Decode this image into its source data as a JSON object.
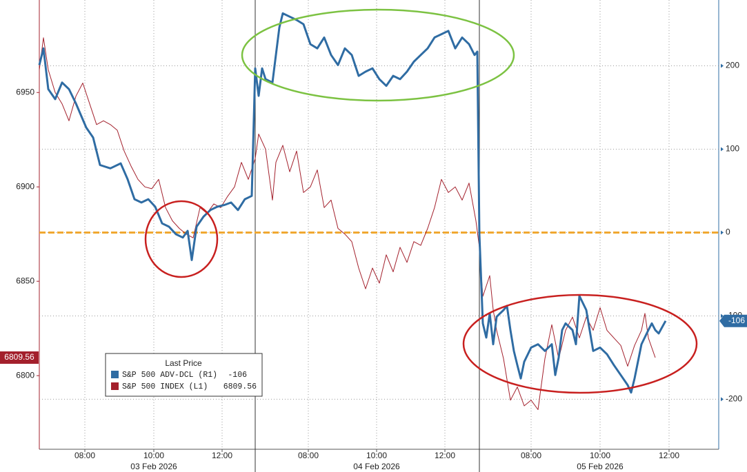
{
  "chart_data": {
    "type": "line",
    "xlim": [
      0,
      19.7
    ],
    "xticks": [
      {
        "value": 1.32,
        "label": "08:00"
      },
      {
        "value": 3.32,
        "label": "10:00"
      },
      {
        "value": 5.3,
        "label": "12:00"
      },
      {
        "value": 7.8,
        "label": "08:00"
      },
      {
        "value": 9.78,
        "label": "10:00"
      },
      {
        "value": 11.76,
        "label": "12:00"
      },
      {
        "value": 14.26,
        "label": "08:00"
      },
      {
        "value": 16.26,
        "label": "10:00"
      },
      {
        "value": 18.26,
        "label": "12:00"
      }
    ],
    "x_date_labels": [
      {
        "value": 3.32,
        "label": "03 Feb 2026"
      },
      {
        "value": 9.78,
        "label": "04 Feb 2026"
      },
      {
        "value": 16.26,
        "label": "05 Feb 2026"
      }
    ],
    "ylim": [
      6761,
      6999
    ],
    "yticks": [
      6800,
      6850,
      6900,
      6950
    ],
    "y2lim": [
      -260,
      279
    ],
    "y2ticks": [
      -200,
      -100,
      0,
      100,
      200
    ],
    "grid": true,
    "reference_line": {
      "value": 0,
      "axis": "y2",
      "color": "#f0a830"
    },
    "legend_title": "Last Price",
    "series": [
      {
        "name": "S&P 500 ADV-DCL (R1)",
        "color": "#2f6ca3",
        "axis": "y2",
        "x": [
          0,
          0.12,
          0.26,
          0.46,
          0.66,
          0.86,
          1.06,
          1.36,
          1.56,
          1.76,
          2.06,
          2.36,
          2.56,
          2.76,
          2.96,
          3.16,
          3.36,
          3.56,
          3.76,
          3.96,
          4.16,
          4.3,
          4.42,
          4.56,
          4.76,
          4.96,
          5.16,
          5.36,
          5.56,
          5.76,
          5.96,
          6.16,
          6.26,
          6.36,
          6.46,
          6.56,
          6.76,
          6.86,
          6.96,
          7.06,
          7.26,
          7.46,
          7.66,
          7.86,
          8.06,
          8.26,
          8.46,
          8.66,
          8.86,
          9.06,
          9.26,
          9.46,
          9.66,
          9.86,
          10.06,
          10.26,
          10.46,
          10.66,
          10.86,
          11.06,
          11.26,
          11.46,
          11.66,
          11.86,
          12.06,
          12.26,
          12.46,
          12.62,
          12.7,
          12.76,
          12.86,
          12.96,
          13.06,
          13.16,
          13.26,
          13.46,
          13.56,
          13.66,
          13.76,
          13.86,
          13.96,
          14.06,
          14.26,
          14.46,
          14.66,
          14.86,
          14.96,
          15.06,
          15.16,
          15.26,
          15.46,
          15.56,
          15.66,
          15.86,
          16.06,
          16.26,
          16.46,
          16.66,
          16.86,
          17.06,
          17.16,
          17.26,
          17.46,
          17.66,
          17.76,
          17.86,
          17.96,
          18.16
        ],
        "values": [
          201,
          221,
          172,
          160,
          180,
          172,
          155,
          126,
          114,
          81,
          77,
          83,
          64,
          40,
          36,
          40,
          31,
          11,
          7,
          -2,
          -6,
          2,
          -33,
          7,
          19,
          27,
          31,
          33,
          36,
          27,
          40,
          44,
          197,
          164,
          197,
          184,
          180,
          213,
          246,
          263,
          259,
          255,
          250,
          226,
          221,
          234,
          213,
          201,
          221,
          213,
          188,
          193,
          197,
          184,
          176,
          188,
          184,
          193,
          205,
          213,
          221,
          234,
          238,
          242,
          221,
          234,
          226,
          213,
          217,
          -2,
          -109,
          -126,
          -97,
          -134,
          -101,
          -93,
          -88,
          -117,
          -142,
          -159,
          -175,
          -155,
          -138,
          -134,
          -142,
          -134,
          -171,
          -150,
          -117,
          -109,
          -117,
          -134,
          -76,
          -93,
          -142,
          -138,
          -146,
          -159,
          -171,
          -183,
          -192,
          -175,
          -134,
          -117,
          -109,
          -117,
          -121,
          -106
        ]
      },
      {
        "name": "S&P 500 INDEX (L1)",
        "color": "#a3202c",
        "axis": "y",
        "x": [
          0,
          0.12,
          0.26,
          0.46,
          0.66,
          0.86,
          1.06,
          1.26,
          1.46,
          1.66,
          1.86,
          2.06,
          2.26,
          2.46,
          2.66,
          2.86,
          3.06,
          3.26,
          3.46,
          3.66,
          3.86,
          4.06,
          4.26,
          4.46,
          4.66,
          4.86,
          5.06,
          5.26,
          5.46,
          5.66,
          5.86,
          6.06,
          6.26,
          6.36,
          6.56,
          6.76,
          6.86,
          7.06,
          7.26,
          7.46,
          7.66,
          7.86,
          8.06,
          8.26,
          8.46,
          8.66,
          8.86,
          9.06,
          9.26,
          9.46,
          9.66,
          9.86,
          10.06,
          10.26,
          10.46,
          10.66,
          10.86,
          11.06,
          11.26,
          11.46,
          11.66,
          11.86,
          12.06,
          12.26,
          12.46,
          12.66,
          12.76,
          12.86,
          13.06,
          13.16,
          13.26,
          13.46,
          13.66,
          13.86,
          14.06,
          14.26,
          14.46,
          14.66,
          14.86,
          15.06,
          15.26,
          15.46,
          15.66,
          15.86,
          16.06,
          16.26,
          16.46,
          16.66,
          16.86,
          17.06,
          17.26,
          17.46,
          17.56,
          17.66,
          17.86
        ],
        "values": [
          6962,
          6979,
          6962,
          6950,
          6944,
          6935,
          6948,
          6955,
          6944,
          6933,
          6935,
          6933,
          6930,
          6919,
          6911,
          6904,
          6900,
          6899,
          6904,
          6889,
          6882,
          6878,
          6875,
          6873,
          6889,
          6886,
          6891,
          6889,
          6895,
          6900,
          6913,
          6904,
          6915,
          6928,
          6920,
          6893,
          6913,
          6922,
          6908,
          6919,
          6897,
          6900,
          6909,
          6889,
          6893,
          6878,
          6875,
          6871,
          6857,
          6846,
          6857,
          6849,
          6864,
          6855,
          6868,
          6860,
          6871,
          6869,
          6878,
          6889,
          6904,
          6897,
          6900,
          6893,
          6902,
          6882,
          6868,
          6842,
          6853,
          6835,
          6824,
          6809,
          6787,
          6794,
          6784,
          6787,
          6782,
          6809,
          6827,
          6809,
          6824,
          6831,
          6820,
          6831,
          6824,
          6836,
          6824,
          6820,
          6816,
          6805,
          6816,
          6824,
          6833,
          6820,
          6809.56
        ]
      }
    ]
  }
}
